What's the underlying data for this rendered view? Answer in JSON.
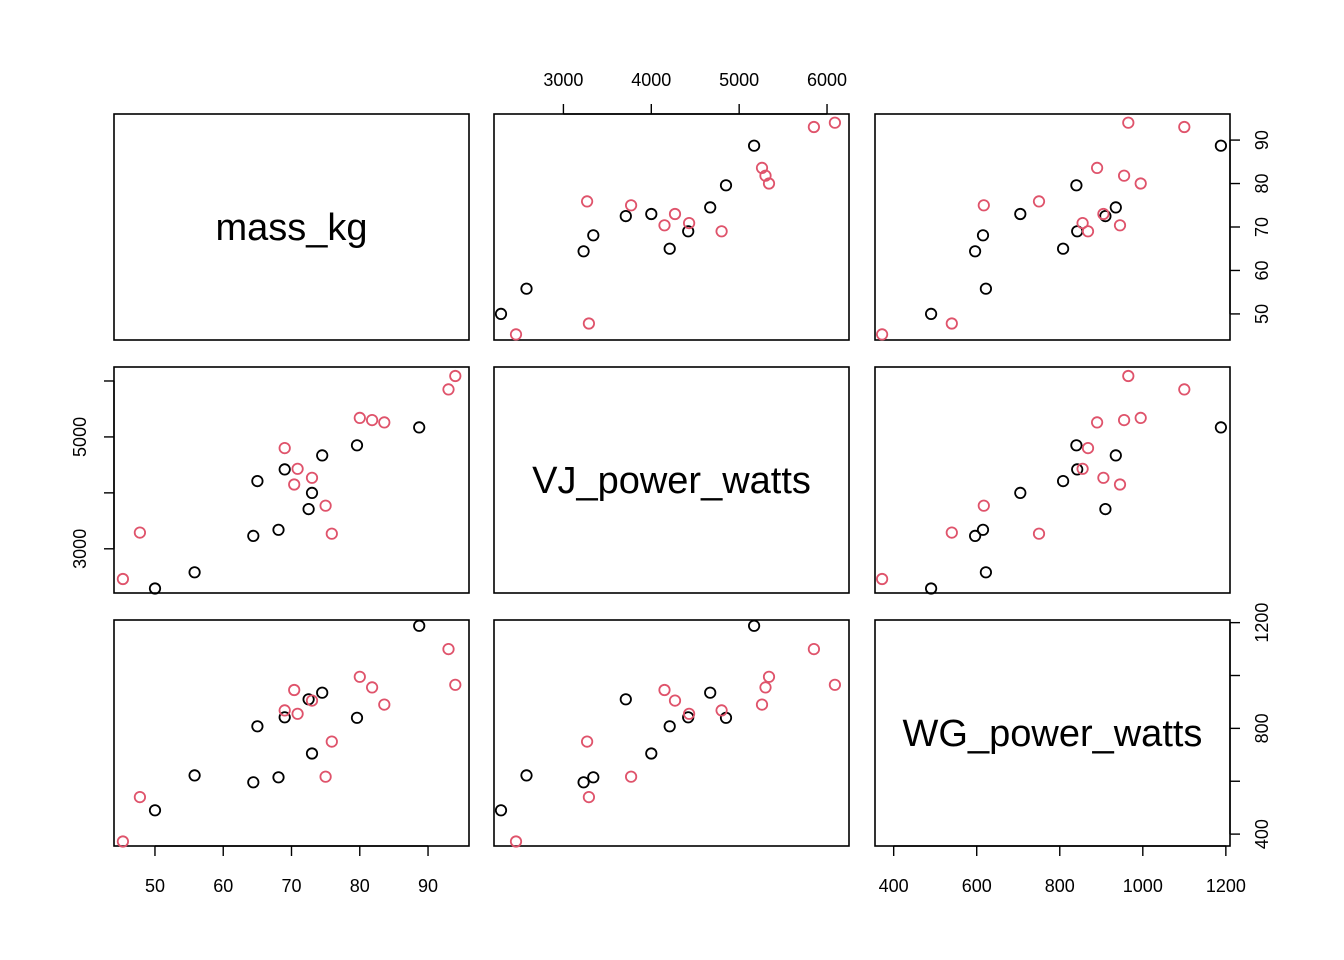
{
  "chart_data": {
    "type": "scatter",
    "layout": "pairs-matrix",
    "variables": [
      "mass_kg",
      "VJ_power_watts",
      "WG_power_watts"
    ],
    "group_colors": [
      "#000000",
      "#DF536B"
    ],
    "axes": {
      "mass_kg": {
        "range": [
          44,
          96
        ],
        "ticks": [
          50,
          60,
          70,
          80,
          90
        ],
        "tick_labels": [
          "50",
          "60",
          "70",
          "80",
          "90"
        ],
        "shown": [
          "bottom",
          "right"
        ]
      },
      "VJ_power_watts": {
        "range": [
          2210,
          6250
        ],
        "ticks": [
          3000,
          4000,
          5000,
          6000
        ],
        "tick_labels": [
          "3000",
          "4000",
          "5000",
          "6000"
        ],
        "shown": [
          "top",
          "left"
        ],
        "left_tick_labels": [
          "3000",
          "5000"
        ],
        "left_ticks": [
          3000,
          4000,
          5000,
          6000
        ]
      },
      "WG_power_watts": {
        "range": [
          355,
          1210
        ],
        "ticks": [
          400,
          600,
          800,
          1000,
          1200
        ],
        "tick_labels": [
          "400",
          "600",
          "800",
          "1000",
          "1200"
        ],
        "shown": [
          "bottom",
          "right"
        ],
        "right_tick_labels": [
          "400",
          "800",
          "1200"
        ],
        "right_ticks": [
          400,
          600,
          800,
          1000,
          1200
        ]
      }
    },
    "points": [
      {
        "mass_kg": 50.0,
        "VJ_power_watts": 2290,
        "WG_power_watts": 490,
        "group": 0
      },
      {
        "mass_kg": 55.8,
        "VJ_power_watts": 2580,
        "WG_power_watts": 622,
        "group": 0
      },
      {
        "mass_kg": 64.4,
        "VJ_power_watts": 3230,
        "WG_power_watts": 596,
        "group": 0
      },
      {
        "mass_kg": 68.1,
        "VJ_power_watts": 3340,
        "WG_power_watts": 615,
        "group": 0
      },
      {
        "mass_kg": 72.5,
        "VJ_power_watts": 3710,
        "WG_power_watts": 910,
        "group": 0
      },
      {
        "mass_kg": 73.0,
        "VJ_power_watts": 4000,
        "WG_power_watts": 705,
        "group": 0
      },
      {
        "mass_kg": 65.0,
        "VJ_power_watts": 4210,
        "WG_power_watts": 808,
        "group": 0
      },
      {
        "mass_kg": 69.0,
        "VJ_power_watts": 4420,
        "WG_power_watts": 842,
        "group": 0
      },
      {
        "mass_kg": 74.5,
        "VJ_power_watts": 4670,
        "WG_power_watts": 935,
        "group": 0
      },
      {
        "mass_kg": 79.6,
        "VJ_power_watts": 4850,
        "WG_power_watts": 840,
        "group": 0
      },
      {
        "mass_kg": 88.7,
        "VJ_power_watts": 5170,
        "WG_power_watts": 1188,
        "group": 0
      },
      {
        "mass_kg": 45.3,
        "VJ_power_watts": 2460,
        "WG_power_watts": 372,
        "group": 1
      },
      {
        "mass_kg": 47.8,
        "VJ_power_watts": 3290,
        "WG_power_watts": 540,
        "group": 1
      },
      {
        "mass_kg": 75.9,
        "VJ_power_watts": 3270,
        "WG_power_watts": 750,
        "group": 1
      },
      {
        "mass_kg": 75.0,
        "VJ_power_watts": 3770,
        "WG_power_watts": 617,
        "group": 1
      },
      {
        "mass_kg": 70.4,
        "VJ_power_watts": 4150,
        "WG_power_watts": 945,
        "group": 1
      },
      {
        "mass_kg": 73.0,
        "VJ_power_watts": 4270,
        "WG_power_watts": 905,
        "group": 1
      },
      {
        "mass_kg": 70.9,
        "VJ_power_watts": 4430,
        "WG_power_watts": 855,
        "group": 1
      },
      {
        "mass_kg": 69.0,
        "VJ_power_watts": 4800,
        "WG_power_watts": 868,
        "group": 1
      },
      {
        "mass_kg": 83.6,
        "VJ_power_watts": 5260,
        "WG_power_watts": 890,
        "group": 1
      },
      {
        "mass_kg": 81.8,
        "VJ_power_watts": 5300,
        "WG_power_watts": 955,
        "group": 1
      },
      {
        "mass_kg": 80.0,
        "VJ_power_watts": 5340,
        "WG_power_watts": 995,
        "group": 1
      },
      {
        "mass_kg": 93.0,
        "VJ_power_watts": 5850,
        "WG_power_watts": 1100,
        "group": 1
      },
      {
        "mass_kg": 94.0,
        "VJ_power_watts": 6090,
        "WG_power_watts": 965,
        "group": 1
      }
    ]
  }
}
